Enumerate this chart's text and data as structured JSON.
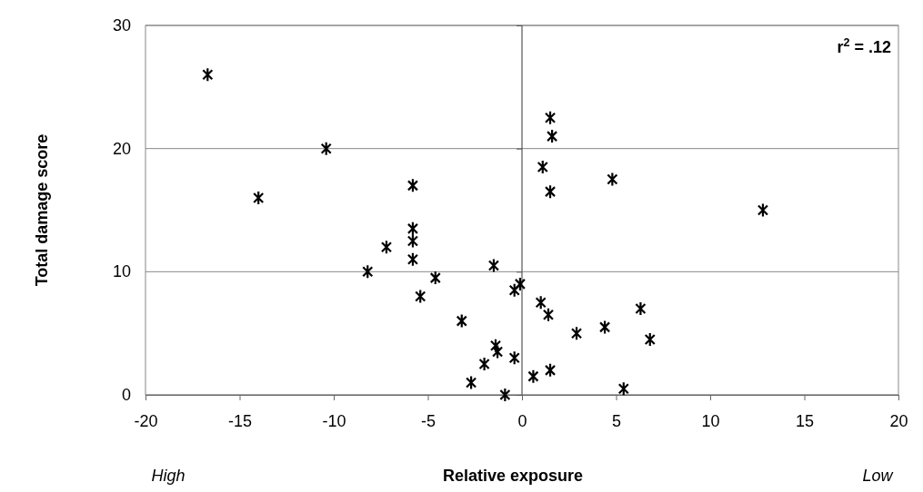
{
  "chart_data": {
    "type": "scatter",
    "xlabel": "Relative exposure",
    "ylabel": "Total damage score",
    "annotations": [
      "High",
      "Low",
      "r$^{2}$ = .12"
    ],
    "x": [
      -16.7,
      -14,
      -10.4,
      -5.8,
      -5.8,
      -5.8,
      -5.8,
      -7.2,
      -8.2,
      -5.4,
      -4.6,
      -1.5,
      -0.4,
      -0.1,
      -3.2,
      -1.4,
      -1.3,
      -2,
      -2.7,
      -0.4,
      -0.9,
      1.5,
      1.6,
      1.1,
      1.5,
      4.8,
      12.8,
      1,
      1.4,
      2.9,
      4.4,
      6.3,
      6.8,
      0.6,
      1.5,
      5.4
    ],
    "series": [
      {
        "color": "#000000",
        "values": [
          26,
          16,
          20,
          17,
          13.5,
          12.5,
          11,
          12,
          10,
          8,
          9.5,
          10.5,
          8.5,
          9,
          6,
          4,
          3.5,
          2.5,
          1,
          3,
          0,
          22.5,
          21,
          18.5,
          16.5,
          17.5,
          15,
          7.5,
          6.5,
          5,
          5.5,
          7,
          4.5,
          1.5,
          2,
          0.5
        ]
      }
    ],
    "xlim": [
      -20,
      20
    ],
    "xticks": [
      -20,
      -15,
      -10,
      -5,
      0,
      5,
      10,
      15,
      20
    ],
    "ylim": [
      0,
      30
    ],
    "yticks": [
      0,
      10,
      20,
      30
    ],
    "grid": "y",
    "marker": "cross",
    "ref_lines": [
      {
        "axis": "x",
        "value": 0,
        "color": "#555555"
      }
    ]
  }
}
